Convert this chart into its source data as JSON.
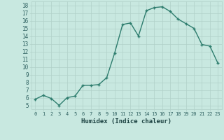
{
  "x": [
    0,
    1,
    2,
    3,
    4,
    5,
    6,
    7,
    8,
    9,
    10,
    11,
    12,
    13,
    14,
    15,
    16,
    17,
    18,
    19,
    20,
    21,
    22,
    23
  ],
  "y": [
    5.8,
    6.3,
    5.9,
    5.0,
    6.0,
    6.2,
    7.6,
    7.6,
    7.7,
    8.6,
    11.8,
    15.5,
    15.7,
    14.0,
    17.3,
    17.7,
    17.8,
    17.2,
    16.2,
    15.6,
    15.0,
    12.9,
    12.7,
    10.5
  ],
  "xlabel": "Humidex (Indice chaleur)",
  "xlim": [
    -0.5,
    23.5
  ],
  "ylim": [
    4.5,
    18.5
  ],
  "yticks": [
    5,
    6,
    7,
    8,
    9,
    10,
    11,
    12,
    13,
    14,
    15,
    16,
    17,
    18
  ],
  "xticks": [
    0,
    1,
    2,
    3,
    4,
    5,
    6,
    7,
    8,
    9,
    10,
    11,
    12,
    13,
    14,
    15,
    16,
    17,
    18,
    19,
    20,
    21,
    22,
    23
  ],
  "line_color": "#2e7d6e",
  "marker_color": "#2e7d6e",
  "bg_color": "#c8e8e0",
  "grid_color": "#b0d0c8",
  "tick_label_color": "#2e6060",
  "xlabel_color": "#1a4040",
  "line_width": 1.0,
  "marker_size": 3.5
}
